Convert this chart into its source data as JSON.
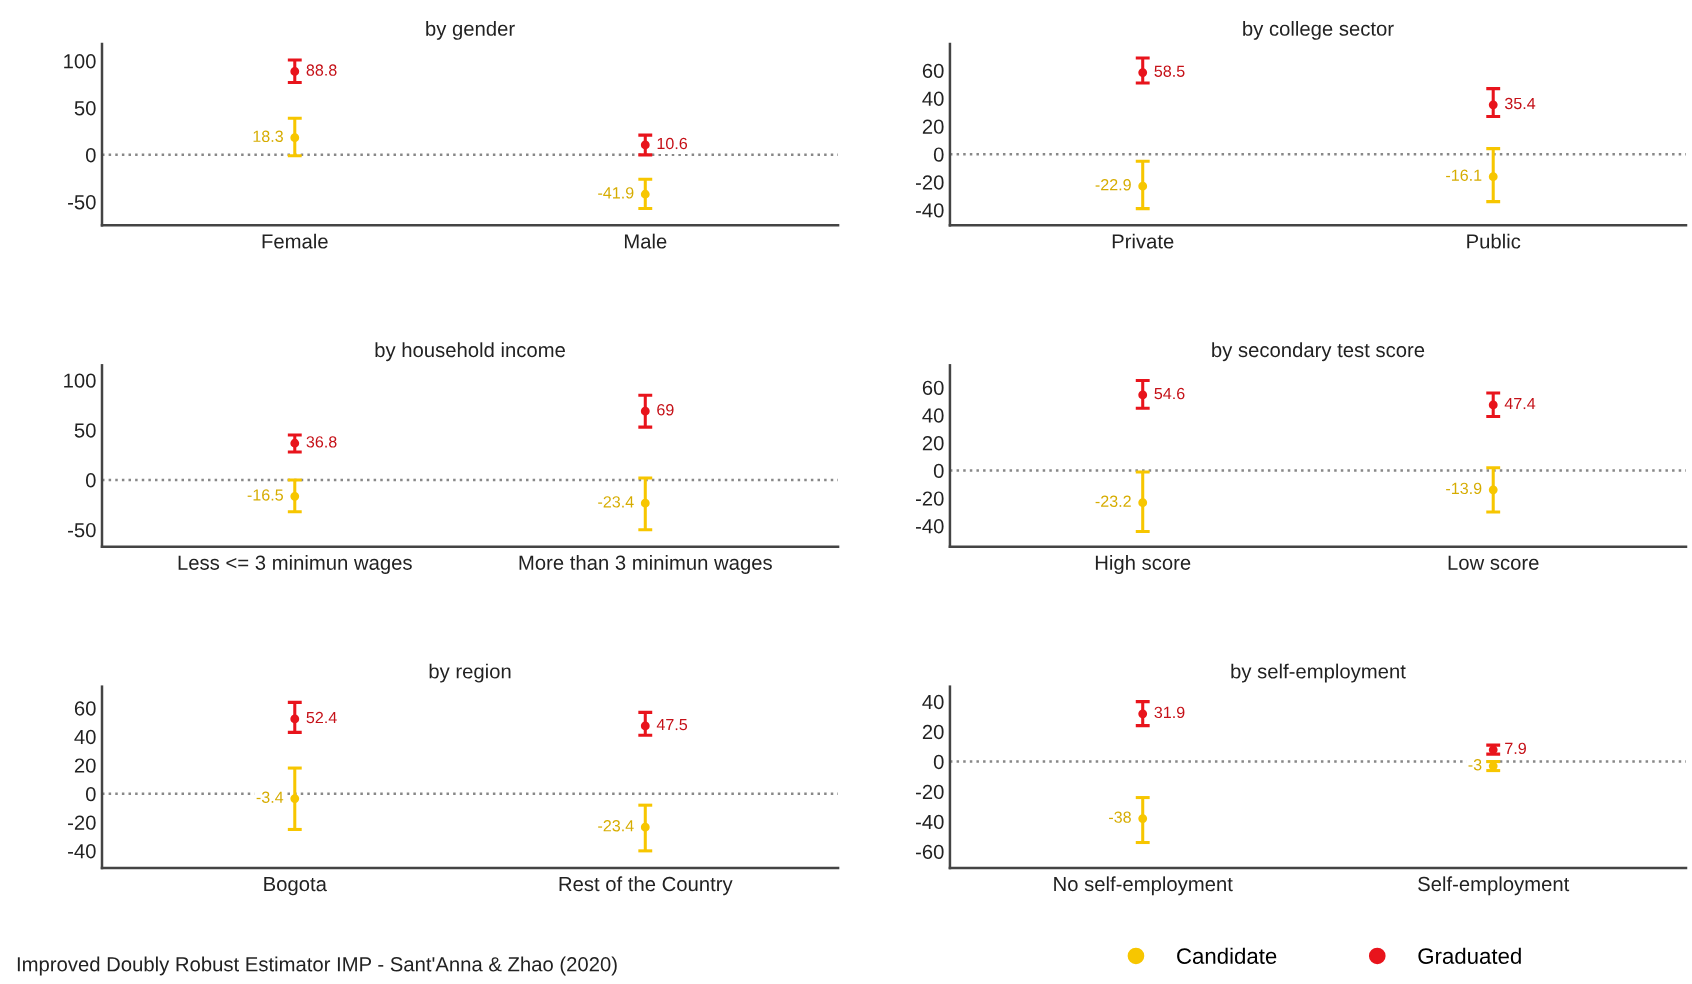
{
  "chart_data": [
    {
      "type": "scatter",
      "title": "by gender",
      "categories": [
        "Female",
        "Male"
      ],
      "ylim": [
        -75,
        118
      ],
      "yticks": [
        -50,
        0,
        50,
        100
      ],
      "marker": "circle",
      "data_labels": true,
      "legend": "bottom",
      "ref_lines": [
        {
          "axis": "y",
          "value": 0,
          "color": "#888888",
          "line_style": "dotted"
        }
      ],
      "series": [
        {
          "name": "Candidate",
          "color": "#f7c600",
          "values": [
            18.3,
            -41.9
          ],
          "errors": [
            [
              -1,
              39
            ],
            [
              -57,
              -26
            ]
          ]
        },
        {
          "name": "Graduated",
          "color": "#e8141c",
          "values": [
            88.8,
            10.6
          ],
          "errors": [
            [
              77,
              101
            ],
            [
              0,
              21
            ]
          ]
        }
      ]
    },
    {
      "type": "scatter",
      "title": "by college sector",
      "categories": [
        "Private",
        "Public"
      ],
      "ylim": [
        -51,
        79
      ],
      "yticks": [
        -40,
        -20,
        0,
        20,
        40,
        60
      ],
      "marker": "circle",
      "data_labels": true,
      "ref_lines": [
        {
          "axis": "y",
          "value": 0,
          "color": "#888888",
          "line_style": "dotted"
        }
      ],
      "series": [
        {
          "color": "#f7c600",
          "values": [
            -22.9,
            -16.1
          ],
          "errors": [
            [
              -39,
              -5
            ],
            [
              -34,
              4
            ]
          ]
        },
        {
          "color": "#e8141c",
          "values": [
            58.5,
            35.4
          ],
          "errors": [
            [
              51,
              69
            ],
            [
              27,
              47
            ]
          ]
        }
      ]
    },
    {
      "type": "scatter",
      "title": "by household income",
      "categories": [
        "Less <= 3 minimun wages",
        "More than 3 minimun wages"
      ],
      "ylim": [
        -67,
        115
      ],
      "yticks": [
        -50,
        0,
        50,
        100
      ],
      "marker": "circle",
      "data_labels": true,
      "ref_lines": [
        {
          "axis": "y",
          "value": 0,
          "color": "#888888",
          "line_style": "dotted"
        }
      ],
      "series": [
        {
          "color": "#f7c600",
          "values": [
            -16.5,
            -23.4
          ],
          "errors": [
            [
              -32,
              0
            ],
            [
              -50,
              2
            ]
          ]
        },
        {
          "color": "#e8141c",
          "values": [
            36.8,
            69
          ],
          "errors": [
            [
              28,
              45
            ],
            [
              53,
              85
            ]
          ]
        }
      ]
    },
    {
      "type": "scatter",
      "title": "by secondary test score",
      "categories": [
        "High score",
        "Low score"
      ],
      "ylim": [
        -55,
        76
      ],
      "yticks": [
        -40,
        -20,
        0,
        20,
        40,
        60
      ],
      "marker": "circle",
      "data_labels": true,
      "ref_lines": [
        {
          "axis": "y",
          "value": 0,
          "color": "#888888",
          "line_style": "dotted"
        }
      ],
      "series": [
        {
          "color": "#f7c600",
          "values": [
            -23.2,
            -13.9
          ],
          "errors": [
            [
              -44,
              -1
            ],
            [
              -30,
              2
            ]
          ]
        },
        {
          "color": "#e8141c",
          "values": [
            54.6,
            47.4
          ],
          "errors": [
            [
              45,
              65
            ],
            [
              39,
              56
            ]
          ]
        }
      ]
    },
    {
      "type": "scatter",
      "title": "by region",
      "categories": [
        "Bogota",
        "Rest of the Country"
      ],
      "ylim": [
        -52,
        75
      ],
      "yticks": [
        -40,
        -20,
        0,
        20,
        40,
        60
      ],
      "marker": "circle",
      "data_labels": true,
      "ref_lines": [
        {
          "axis": "y",
          "value": 0,
          "color": "#888888",
          "line_style": "dotted"
        }
      ],
      "annotations": [
        "Improved Doubly Robust Estimator IMP - Sant'Anna & Zhao (2020)"
      ],
      "series": [
        {
          "color": "#f7c600",
          "values": [
            -3.4,
            -23.4
          ],
          "errors": [
            [
              -25,
              18
            ],
            [
              -40,
              -8
            ]
          ]
        },
        {
          "color": "#e8141c",
          "values": [
            52.4,
            47.5
          ],
          "errors": [
            [
              43,
              64
            ],
            [
              41,
              57
            ]
          ]
        }
      ]
    },
    {
      "type": "scatter",
      "title": "by self-employment",
      "categories": [
        "No self-employment",
        "Self-employment"
      ],
      "ylim": [
        -71,
        50
      ],
      "yticks": [
        -60,
        -40,
        -20,
        0,
        20,
        40
      ],
      "marker": "circle",
      "data_labels": true,
      "ref_lines": [
        {
          "axis": "y",
          "value": 0,
          "color": "#888888",
          "line_style": "dotted"
        }
      ],
      "series": [
        {
          "color": "#f7c600",
          "values": [
            -38,
            -3
          ],
          "errors": [
            [
              -54,
              -24
            ],
            [
              -6,
              0
            ]
          ]
        },
        {
          "color": "#e8141c",
          "values": [
            31.9,
            7.9
          ],
          "errors": [
            [
              24,
              40
            ],
            [
              5,
              11
            ]
          ]
        }
      ]
    }
  ]
}
